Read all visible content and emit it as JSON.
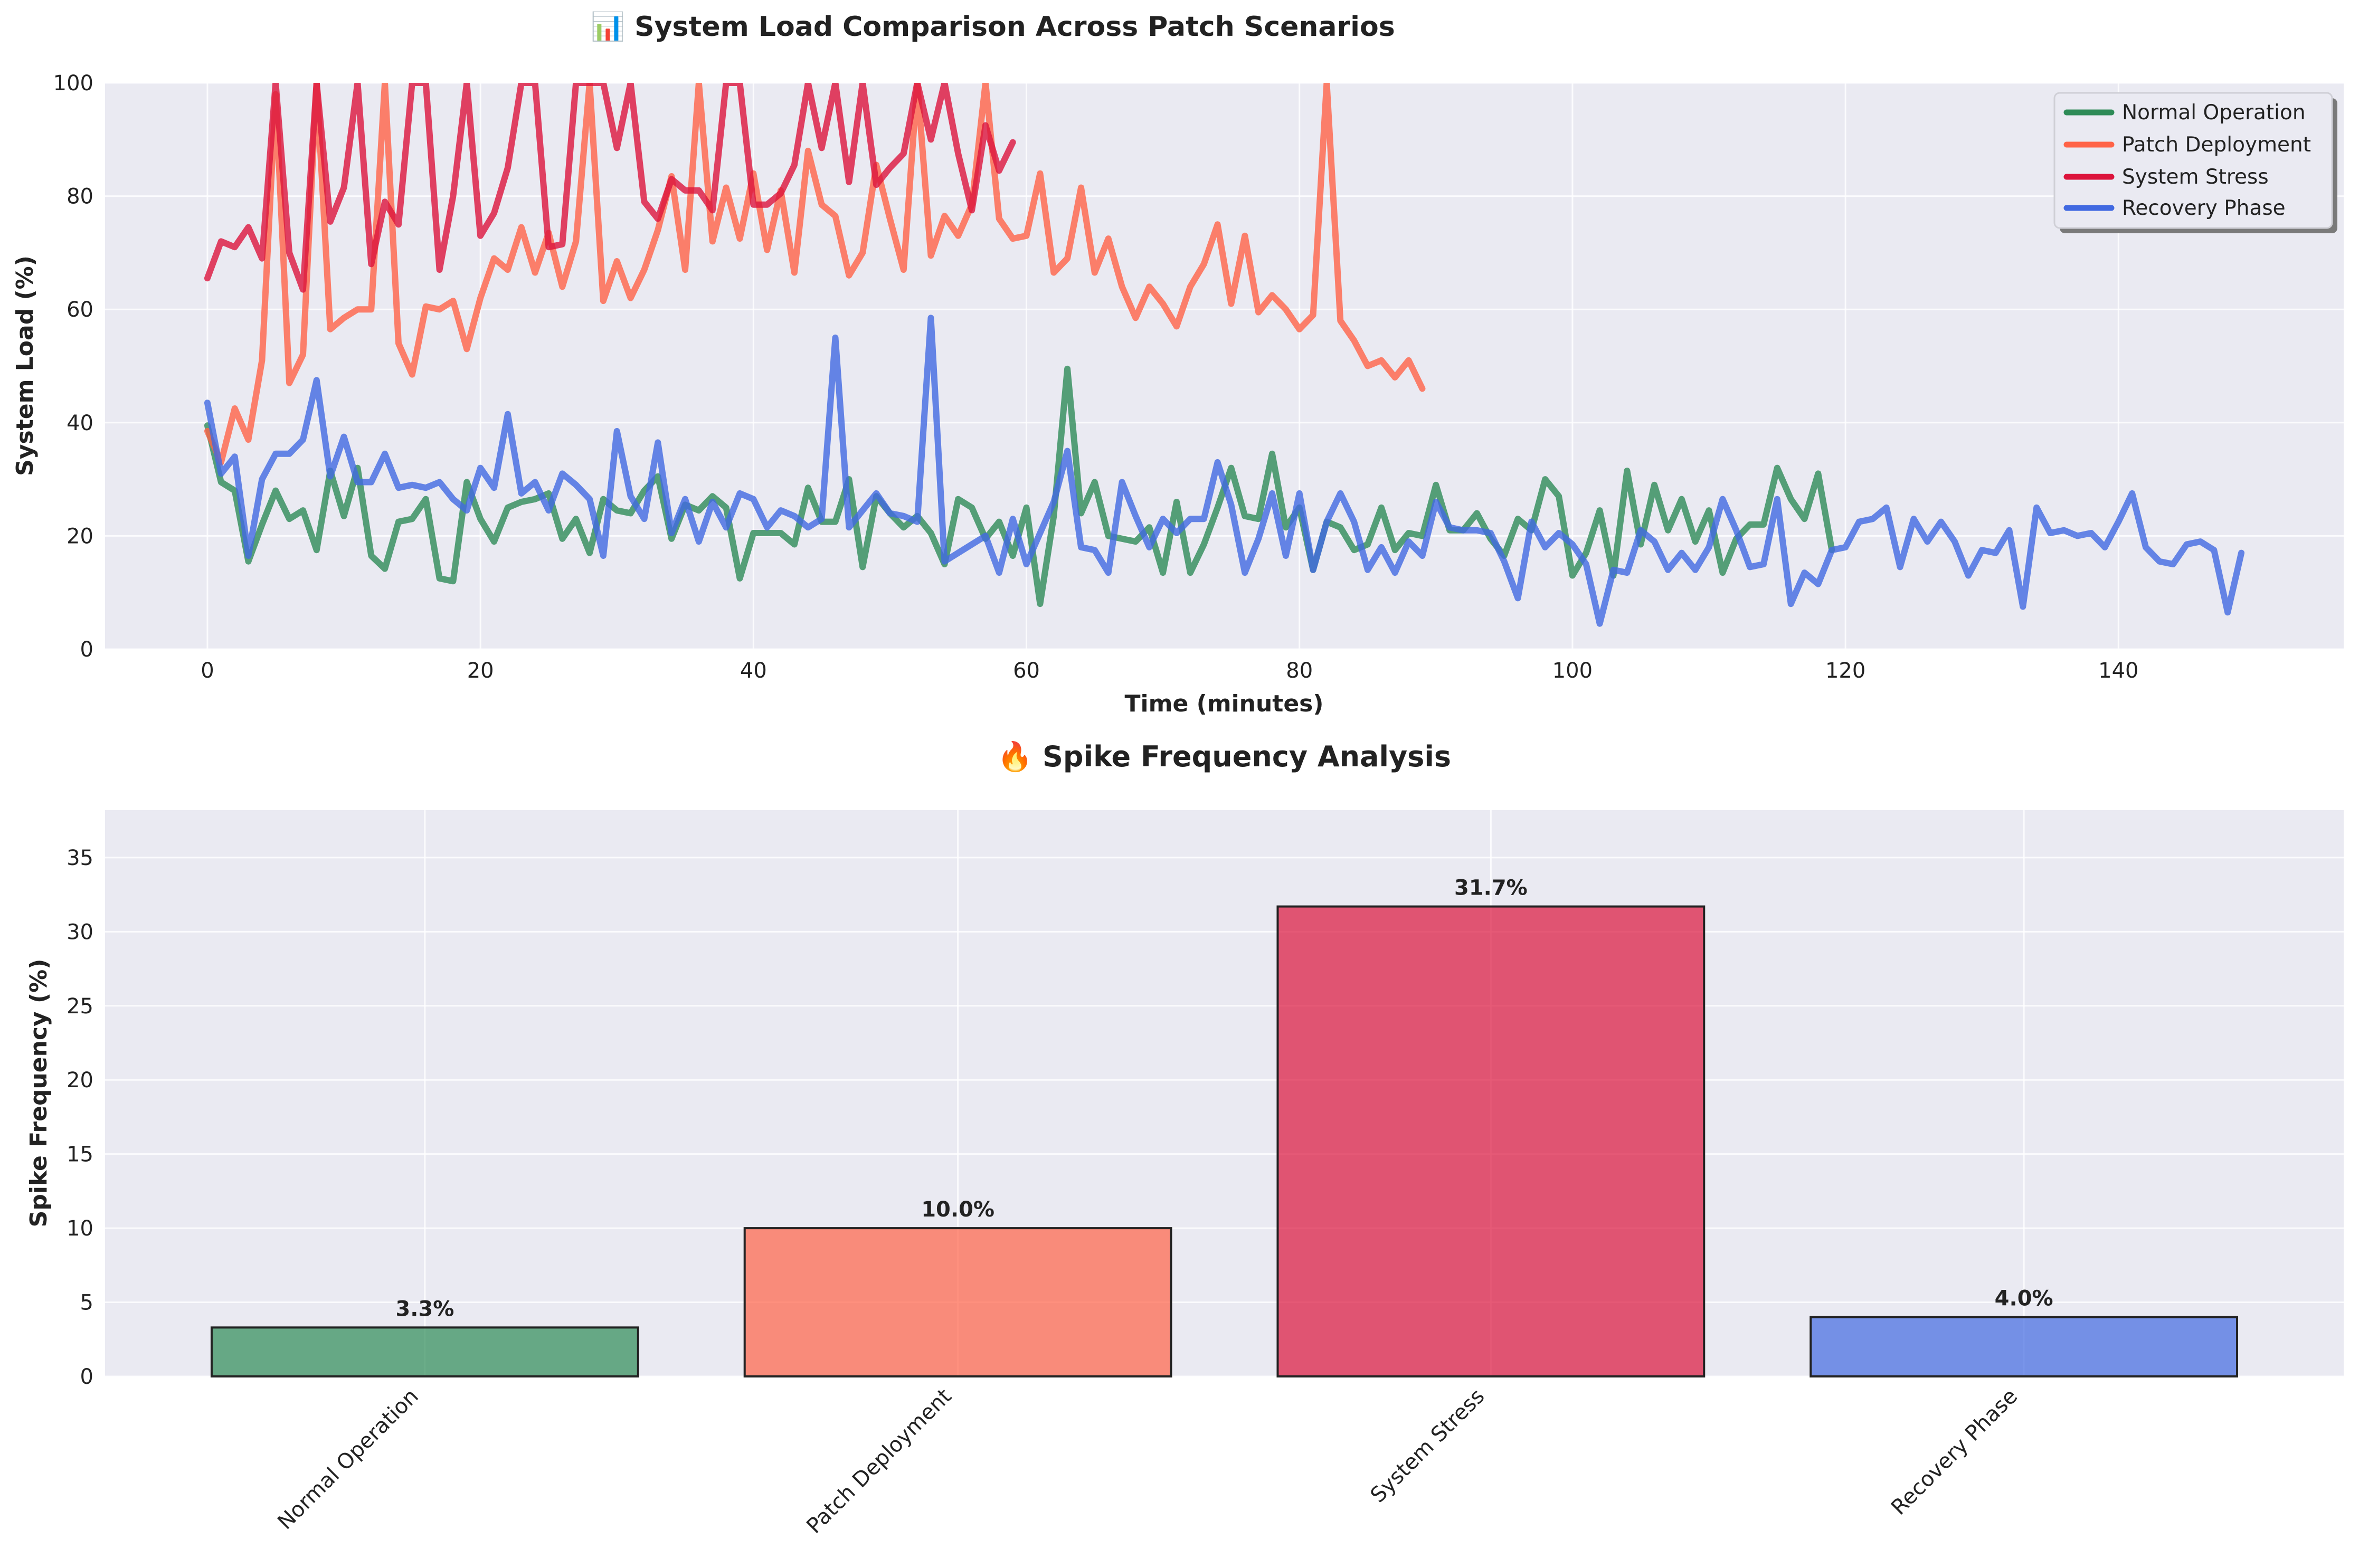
{
  "chart_data": [
    {
      "type": "line",
      "title": "📊 System Load Comparison Across Patch Scenarios",
      "xlabel": "Time (minutes)",
      "ylabel": "System Load (%)",
      "xlim": [
        -7.5,
        156.5
      ],
      "ylim": [
        0,
        100
      ],
      "xticks": [
        0,
        20,
        40,
        60,
        80,
        100,
        120,
        140
      ],
      "yticks": [
        0,
        20,
        40,
        60,
        80,
        100
      ],
      "grid": true,
      "legend_position": "top-right",
      "series": [
        {
          "name": "Normal Operation",
          "color": "#2E8B57",
          "x_start": 0,
          "values": [
            39.5,
            29.5,
            28,
            15.5,
            22,
            28,
            23,
            24.5,
            17.5,
            31.5,
            23.5,
            32,
            16.5,
            14.2,
            22.5,
            23,
            26.5,
            12.5,
            12,
            29.5,
            23,
            19,
            25,
            26,
            26.5,
            27.5,
            19.5,
            23,
            17,
            26.5,
            24.5,
            24,
            28,
            30.5,
            19.5,
            25.5,
            24.5,
            27,
            25,
            12.5,
            20.5,
            20.5,
            20.5,
            18.5,
            28.5,
            22.5,
            22.5,
            30,
            14.5,
            27,
            24,
            21.5,
            23.5,
            20.5,
            15,
            26.5,
            25,
            19.5,
            22.5,
            16.5,
            25,
            8,
            23.5,
            49.5,
            24,
            29.5,
            20,
            19.5,
            19,
            21.5,
            13.5,
            26,
            13.5,
            18.5,
            25,
            32,
            23.5,
            23,
            34.5,
            21.5,
            25,
            14,
            22.5,
            21.5,
            17.5,
            18.5,
            25,
            17.5,
            20.5,
            20,
            29,
            21,
            21,
            24,
            19.5,
            16.5,
            23,
            21,
            30,
            27,
            13,
            17,
            24.5,
            13,
            31.5,
            18.5,
            29,
            21,
            26.5,
            19,
            24.5,
            13.5,
            19.5,
            22,
            22,
            32,
            26.5,
            23,
            31,
            17.5
          ]
        },
        {
          "name": "Patch Deployment",
          "color": "#FF6347",
          "x_start": 0,
          "values": [
            38.5,
            33,
            42.5,
            37,
            51,
            98,
            47,
            52,
            100,
            56.5,
            58.5,
            60,
            60,
            100,
            54,
            48.5,
            60.5,
            60,
            61.5,
            53,
            62,
            69,
            67,
            74.5,
            66.5,
            73.5,
            64,
            72,
            100,
            61.5,
            68.5,
            62,
            67,
            74,
            83.5,
            67,
            100,
            72,
            81.5,
            72.5,
            84,
            70.5,
            81,
            66.5,
            88,
            78.5,
            76.5,
            66,
            70,
            85.5,
            76,
            67,
            100,
            69.5,
            76.5,
            73,
            78.5,
            100,
            76,
            72.5,
            73,
            84,
            66.5,
            69,
            81.5,
            66.5,
            72.5,
            64,
            58.5,
            64,
            61,
            57,
            64,
            68,
            75,
            61,
            73,
            59.5,
            62.5,
            60,
            56.5,
            59,
            100,
            58,
            54.5,
            50,
            51,
            48,
            51,
            46
          ]
        },
        {
          "name": "System Stress",
          "color": "#DC143C",
          "x_start": 0,
          "values": [
            65.5,
            72,
            71,
            74.5,
            69,
            100,
            70,
            63.5,
            100,
            75.5,
            81.5,
            100,
            68,
            79,
            75,
            100,
            100,
            67,
            80,
            100,
            73,
            77,
            85,
            100,
            100,
            71,
            71.5,
            100,
            100,
            100,
            88.5,
            100,
            79,
            76,
            83,
            81,
            81,
            77.5,
            100,
            100,
            78.5,
            78.5,
            80.5,
            85.5,
            100,
            88.5,
            100,
            82.5,
            100,
            82,
            85,
            87.5,
            100,
            90,
            100,
            87.5,
            77.5,
            92.5,
            84.5,
            89.5
          ]
        },
        {
          "name": "Recovery Phase",
          "color": "#4169E1",
          "x_start": 0,
          "values": [
            43.5,
            31,
            34,
            16.5,
            30,
            34.5,
            34.5,
            37,
            47.5,
            30.5,
            37.5,
            29.5,
            29.5,
            34.5,
            28.5,
            29,
            28.5,
            29.5,
            26.5,
            24.5,
            32,
            28.5,
            41.5,
            27.5,
            29.5,
            24.5,
            31,
            29,
            26.5,
            16.5,
            38.5,
            27,
            23,
            36.5,
            20.5,
            26.5,
            19,
            26,
            21.5,
            27.5,
            26.5,
            21.5,
            24.5,
            23.5,
            21.5,
            23,
            55,
            21.5,
            24.5,
            27.5,
            24,
            23.5,
            22.5,
            58.5,
            15.5,
            17,
            18.5,
            20,
            13.5,
            23,
            15,
            20.5,
            26,
            35,
            18,
            17.5,
            13.5,
            29.5,
            23.5,
            18,
            23,
            20.5,
            23,
            23,
            33,
            25.5,
            13.5,
            19.5,
            27.5,
            16.5,
            27.5,
            14,
            22.5,
            27.5,
            22.5,
            14,
            18,
            13.5,
            19,
            16.5,
            26,
            21.5,
            21,
            21,
            20.5,
            15.5,
            9,
            22.5,
            18,
            20.5,
            18.5,
            15,
            4.5,
            14,
            13.5,
            21,
            19,
            14,
            17,
            14,
            18,
            26.5,
            21,
            14.5,
            15,
            26.5,
            8,
            13.5,
            11.5,
            17.5,
            18,
            22.5,
            23,
            25,
            14.5,
            23,
            19,
            22.5,
            19,
            13,
            17.5,
            17,
            21,
            7.5,
            25,
            20.5,
            21,
            20,
            20.5,
            18,
            22.5,
            27.5,
            18,
            15.5,
            15,
            18.5,
            19,
            17.5,
            6.5,
            17
          ]
        }
      ]
    },
    {
      "type": "bar",
      "title": "🔥 Spike Frequency Analysis",
      "xlabel": "",
      "ylabel": "Spike Frequency (%)",
      "ylim": [
        0,
        38.2
      ],
      "yticks": [
        0,
        5,
        10,
        15,
        20,
        25,
        30,
        35
      ],
      "grid": true,
      "categories": [
        "Normal Operation",
        "Patch Deployment",
        "System Stress",
        "Recovery Phase"
      ],
      "values": [
        3.3,
        10.0,
        31.7,
        4.0
      ],
      "labels": [
        "3.3%",
        "10.0%",
        "31.7%",
        "4.0%"
      ],
      "colors": [
        "#2E8B57",
        "#FF6347",
        "#DC143C",
        "#4169E1"
      ]
    }
  ]
}
